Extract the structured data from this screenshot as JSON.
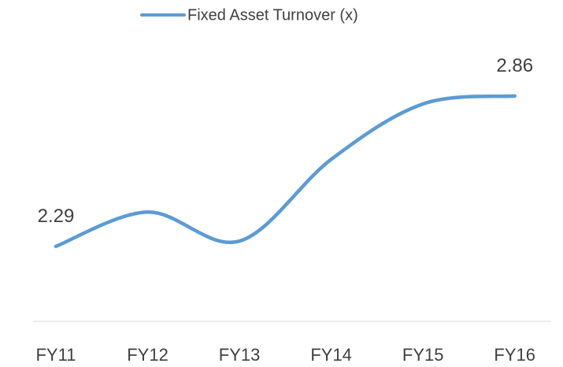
{
  "chart_data": {
    "type": "line",
    "categories": [
      "FY11",
      "FY12",
      "FY13",
      "FY14",
      "FY15",
      "FY16"
    ],
    "series": [
      {
        "name": "Fixed Asset Turnover (x)",
        "color": "#5b9bd5",
        "values": [
          2.29,
          2.42,
          2.31,
          2.62,
          2.83,
          2.86
        ],
        "value_labels": [
          "2.29",
          null,
          null,
          null,
          null,
          "2.86"
        ]
      }
    ],
    "ylim": [
      2.0,
      3.0
    ],
    "legend": "top"
  }
}
